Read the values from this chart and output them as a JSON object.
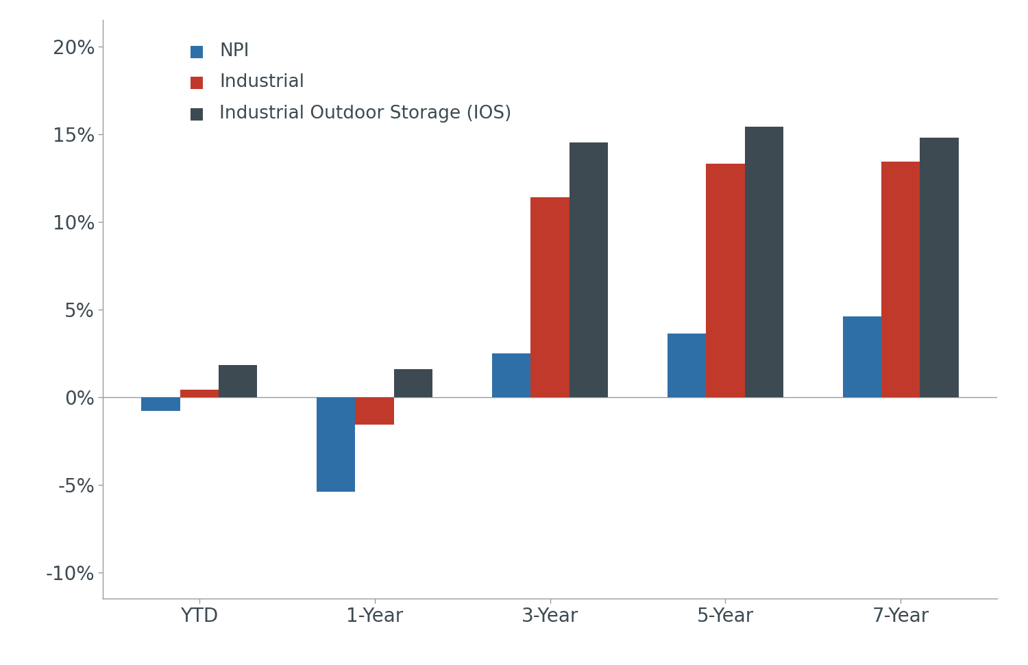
{
  "categories": [
    "YTD",
    "1-Year",
    "3-Year",
    "5-Year",
    "7-Year"
  ],
  "series": {
    "NPI": [
      -0.008,
      -0.054,
      0.025,
      0.036,
      0.046
    ],
    "Industrial": [
      0.004,
      -0.016,
      0.114,
      0.133,
      0.134
    ],
    "Industrial Outdoor Storage (IOS)": [
      0.018,
      0.016,
      0.145,
      0.154,
      0.148
    ]
  },
  "colors": {
    "NPI": "#2F6FA8",
    "Industrial": "#C0392B",
    "Industrial Outdoor Storage (IOS)": "#3D4A52"
  },
  "ylim": [
    -0.115,
    0.215
  ],
  "yticks": [
    -0.1,
    -0.05,
    0.0,
    0.05,
    0.1,
    0.15,
    0.2
  ],
  "bar_width": 0.22,
  "background_color": "#ffffff",
  "text_color": "#3D4A52",
  "legend_labels": [
    "NPI",
    "Industrial",
    "Industrial Outdoor Storage (IOS)"
  ],
  "axis_color": "#9a9a9a"
}
